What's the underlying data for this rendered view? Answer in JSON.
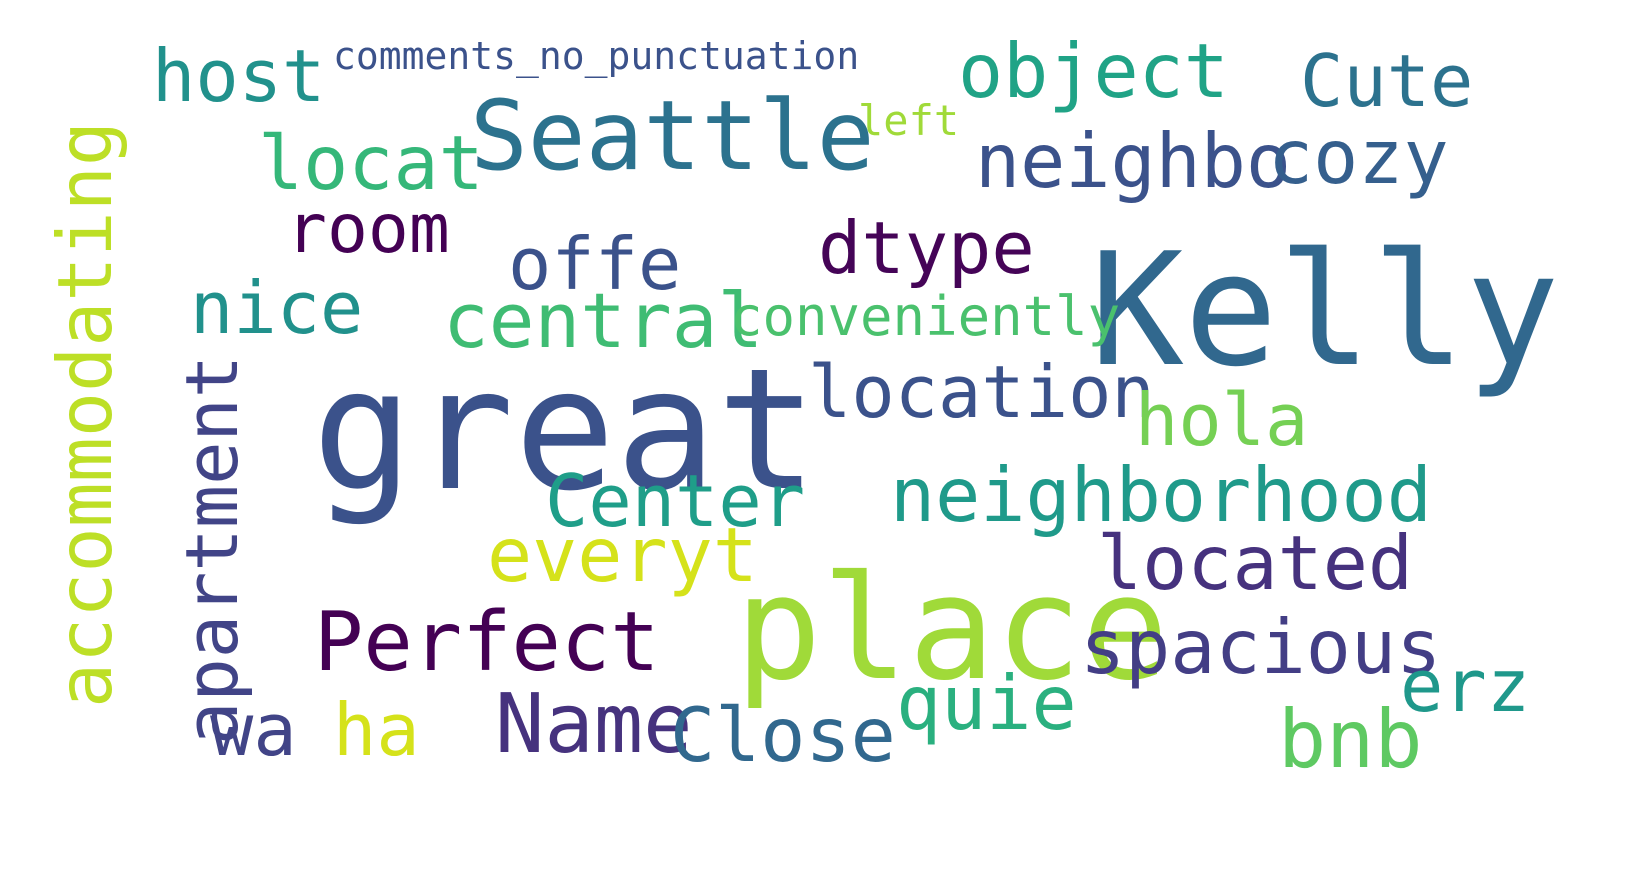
{
  "words": [
    {
      "text": "comments_no_punctuation",
      "color": "#3b528b"
    },
    {
      "text": "host",
      "color": "#21918c"
    },
    {
      "text": "object",
      "color": "#20a386"
    },
    {
      "text": "Cute",
      "color": "#2c728e"
    },
    {
      "text": "Seattle",
      "color": "#2c728e"
    },
    {
      "text": "left",
      "color": "#a0da39"
    },
    {
      "text": "locat",
      "color": "#35b779"
    },
    {
      "text": "neighbo",
      "color": "#3b528b"
    },
    {
      "text": "cozy",
      "color": "#355f8d"
    },
    {
      "text": "accommodating",
      "color": "#bddf26"
    },
    {
      "text": "room",
      "color": "#440154"
    },
    {
      "text": "dtype",
      "color": "#450457"
    },
    {
      "text": "offe",
      "color": "#3b528b"
    },
    {
      "text": "Kelly",
      "color": "#31688e"
    },
    {
      "text": "nice",
      "color": "#21918c"
    },
    {
      "text": "central",
      "color": "#3fbc73"
    },
    {
      "text": "conveniently",
      "color": "#4ac16d"
    },
    {
      "text": "apartment",
      "color": "#414487"
    },
    {
      "text": "great",
      "color": "#3b528b"
    },
    {
      "text": "location",
      "color": "#3b528b"
    },
    {
      "text": "hola",
      "color": "#75d054"
    },
    {
      "text": "Center",
      "color": "#1f9e89"
    },
    {
      "text": "neighborhood",
      "color": "#1f9a8a"
    },
    {
      "text": "everyt",
      "color": "#d5e21a"
    },
    {
      "text": "located",
      "color": "#46327e"
    },
    {
      "text": "place",
      "color": "#a0da39"
    },
    {
      "text": "Perfect",
      "color": "#440154"
    },
    {
      "text": "spacious",
      "color": "#433e85"
    },
    {
      "text": "erz",
      "color": "#1f988b"
    },
    {
      "text": "quie",
      "color": "#2ab07f"
    },
    {
      "text": "wa",
      "color": "#414487"
    },
    {
      "text": "ha",
      "color": "#d5e21a"
    },
    {
      "text": "Name",
      "color": "#46327e"
    },
    {
      "text": "Close",
      "color": "#31688e"
    },
    {
      "text": "bnb",
      "color": "#5ec962"
    }
  ]
}
